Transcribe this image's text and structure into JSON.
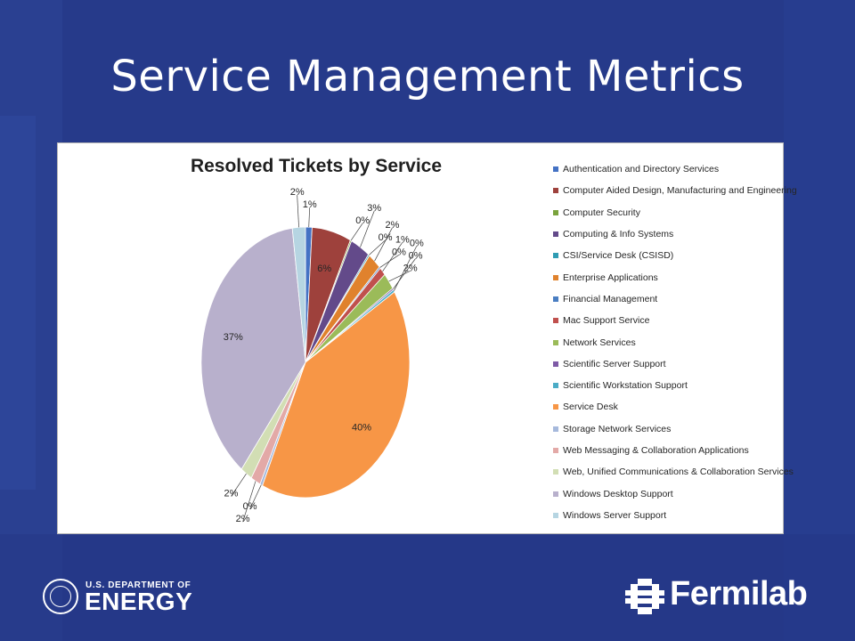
{
  "slide": {
    "title": "Service Management Metrics",
    "background_color": "#263a8a"
  },
  "footer": {
    "doe_line1": "U.S. DEPARTMENT OF",
    "doe_line2": "ENERGY",
    "fermilab": "Fermilab"
  },
  "chart_data": {
    "type": "pie",
    "title": "Resolved Tickets by Service",
    "legend_position": "right",
    "start_angle_deg": 0,
    "direction": "clockwise",
    "slices": [
      {
        "name": "Authentication and Directory Services",
        "value": 1.0,
        "label": "1%",
        "color": "#4472c4"
      },
      {
        "name": "Computer Aided Design, Manufacturing and Engineering",
        "value": 6.0,
        "label": "6%",
        "color": "#9e413c"
      },
      {
        "name": "Computer Security",
        "value": 0.2,
        "label": "0%",
        "color": "#7aa33c"
      },
      {
        "name": "Computing & Info Systems",
        "value": 3.0,
        "label": "3%",
        "color": "#634a8a"
      },
      {
        "name": "CSI/Service Desk (CSISD)",
        "value": 0.2,
        "label": "0%",
        "color": "#2f9cb3"
      },
      {
        "name": "Enterprise Applications",
        "value": 2.0,
        "label": "2%",
        "color": "#e0822d"
      },
      {
        "name": "Financial Management",
        "value": 0.2,
        "label": "0%",
        "color": "#4a7ec2"
      },
      {
        "name": "Mac Support Service",
        "value": 1.0,
        "label": "1%",
        "color": "#c0504d"
      },
      {
        "name": "Network Services",
        "value": 2.0,
        "label": "2%",
        "color": "#9bbb59"
      },
      {
        "name": "Scientific Server Support",
        "value": 0.2,
        "label": "0%",
        "color": "#7e5aa6"
      },
      {
        "name": "Scientific Workstation Support",
        "value": 0.3,
        "label": "0%",
        "color": "#4bacc6"
      },
      {
        "name": "Service Desk",
        "value": 40.0,
        "label": "40%",
        "color": "#f79646"
      },
      {
        "name": "Storage Network Services",
        "value": 0.4,
        "label": "0%",
        "color": "#a6b9dc"
      },
      {
        "name": "Web Messaging & Collaboration Applications",
        "value": 1.5,
        "label": "2%",
        "color": "#e3a9a7"
      },
      {
        "name": "Web, Unified Communications & Collaboration Services",
        "value": 1.8,
        "label": "2%",
        "color": "#d2deb4"
      },
      {
        "name": "Windows Desktop Support",
        "value": 37.0,
        "label": "37%",
        "color": "#b8b0cc"
      },
      {
        "name": "Windows Server Support",
        "value": 2.0,
        "label": "2%",
        "color": "#b6d5e2"
      }
    ]
  }
}
